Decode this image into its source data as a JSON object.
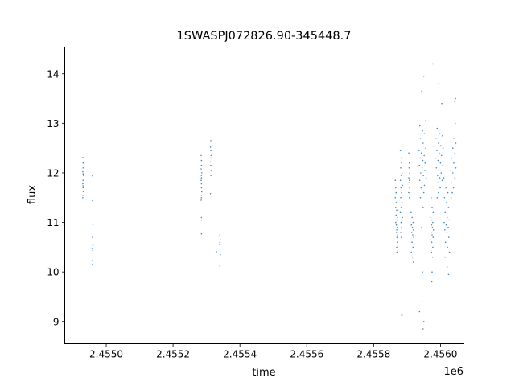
{
  "chart_data": {
    "type": "scatter",
    "title": "1SWASPJ072826.90-345448.7",
    "xlabel": "time",
    "ylabel": "flux",
    "x_offset_label": "1e6",
    "xlim": [
      2454876,
      2456070
    ],
    "ylim": [
      8.55,
      14.54
    ],
    "x_ticks": [
      2455000,
      2455200,
      2455400,
      2455600,
      2455800,
      2456000
    ],
    "x_tick_labels": [
      "2.4550",
      "2.4552",
      "2.4554",
      "2.4556",
      "2.4558",
      "2.4560"
    ],
    "y_ticks": [
      9,
      10,
      11,
      12,
      13,
      14
    ],
    "y_tick_labels": [
      "9",
      "10",
      "11",
      "12",
      "13",
      "14"
    ],
    "grid": false,
    "marker_color": "#1f77b4",
    "points": [
      [
        2454930,
        12.31
      ],
      [
        2454931,
        12.2
      ],
      [
        2454931,
        12.1
      ],
      [
        2454930,
        12.02
      ],
      [
        2454931,
        11.98
      ],
      [
        2454932,
        11.95
      ],
      [
        2454931,
        11.85
      ],
      [
        2454930,
        11.78
      ],
      [
        2454931,
        11.74
      ],
      [
        2454931,
        11.7
      ],
      [
        2454932,
        11.62
      ],
      [
        2454931,
        11.55
      ],
      [
        2454930,
        11.5
      ],
      [
        2454959,
        11.94
      ],
      [
        2454959,
        11.44
      ],
      [
        2454960,
        10.96
      ],
      [
        2454959,
        10.7
      ],
      [
        2454960,
        10.54
      ],
      [
        2454959,
        10.47
      ],
      [
        2454960,
        10.43
      ],
      [
        2454959,
        10.23
      ],
      [
        2454959,
        10.15
      ],
      [
        2455284,
        12.35
      ],
      [
        2455285,
        12.25
      ],
      [
        2455285,
        12.15
      ],
      [
        2455284,
        12.08
      ],
      [
        2455286,
        12.0
      ],
      [
        2455285,
        11.95
      ],
      [
        2455285,
        11.9
      ],
      [
        2455284,
        11.85
      ],
      [
        2455285,
        11.78
      ],
      [
        2455285,
        11.7
      ],
      [
        2455286,
        11.62
      ],
      [
        2455285,
        11.55
      ],
      [
        2455285,
        11.5
      ],
      [
        2455284,
        11.45
      ],
      [
        2455285,
        11.1
      ],
      [
        2455285,
        11.05
      ],
      [
        2455285,
        10.77
      ],
      [
        2455313,
        12.65
      ],
      [
        2455312,
        12.52
      ],
      [
        2455313,
        12.45
      ],
      [
        2455314,
        12.35
      ],
      [
        2455313,
        12.3
      ],
      [
        2455312,
        12.22
      ],
      [
        2455313,
        12.15
      ],
      [
        2455314,
        12.05
      ],
      [
        2455313,
        11.95
      ],
      [
        2455312,
        11.58
      ],
      [
        2455330,
        10.41
      ],
      [
        2455340,
        10.75
      ],
      [
        2455341,
        10.65
      ],
      [
        2455340,
        10.6
      ],
      [
        2455340,
        10.55
      ],
      [
        2455341,
        10.35
      ],
      [
        2455340,
        10.12
      ],
      [
        2455865,
        11.85
      ],
      [
        2455866,
        11.7
      ],
      [
        2455867,
        11.6
      ],
      [
        2455865,
        11.5
      ],
      [
        2455868,
        11.4
      ],
      [
        2455866,
        11.3
      ],
      [
        2455869,
        11.25
      ],
      [
        2455867,
        11.15
      ],
      [
        2455870,
        11.05
      ],
      [
        2455868,
        10.95
      ],
      [
        2455871,
        10.9
      ],
      [
        2455869,
        10.85
      ],
      [
        2455872,
        10.75
      ],
      [
        2455870,
        10.7
      ],
      [
        2455871,
        10.6
      ],
      [
        2455869,
        10.5
      ],
      [
        2455870,
        10.4
      ],
      [
        2455866,
        11.0
      ],
      [
        2455872,
        11.1
      ],
      [
        2455868,
        10.8
      ],
      [
        2455880,
        12.45
      ],
      [
        2455882,
        12.3
      ],
      [
        2455884,
        12.2
      ],
      [
        2455881,
        12.1
      ],
      [
        2455885,
        12.0
      ],
      [
        2455883,
        11.95
      ],
      [
        2455880,
        11.85
      ],
      [
        2455886,
        11.75
      ],
      [
        2455882,
        11.7
      ],
      [
        2455884,
        11.6
      ],
      [
        2455881,
        11.5
      ],
      [
        2455885,
        11.4
      ],
      [
        2455883,
        11.3
      ],
      [
        2455880,
        11.2
      ],
      [
        2455886,
        11.1
      ],
      [
        2455882,
        11.0
      ],
      [
        2455884,
        10.9
      ],
      [
        2455881,
        10.8
      ],
      [
        2455883,
        10.7
      ],
      [
        2455884,
        9.14
      ],
      [
        2455885,
        9.12
      ],
      [
        2455905,
        12.4
      ],
      [
        2455907,
        12.2
      ],
      [
        2455906,
        12.1
      ],
      [
        2455908,
        12.0
      ],
      [
        2455905,
        11.9
      ],
      [
        2455907,
        11.85
      ],
      [
        2455906,
        11.8
      ],
      [
        2455908,
        11.7
      ],
      [
        2455905,
        11.6
      ],
      [
        2455907,
        11.5
      ],
      [
        2455912,
        11.2
      ],
      [
        2455915,
        11.1
      ],
      [
        2455918,
        11.0
      ],
      [
        2455913,
        10.95
      ],
      [
        2455916,
        10.9
      ],
      [
        2455919,
        10.85
      ],
      [
        2455914,
        10.8
      ],
      [
        2455917,
        10.75
      ],
      [
        2455920,
        10.7
      ],
      [
        2455915,
        10.6
      ],
      [
        2455918,
        10.5
      ],
      [
        2455913,
        10.4
      ],
      [
        2455916,
        10.3
      ],
      [
        2455919,
        10.2
      ],
      [
        2455944,
        14.28
      ],
      [
        2455950,
        13.95
      ],
      [
        2455944,
        13.65
      ],
      [
        2455955,
        13.05
      ],
      [
        2455938,
        12.95
      ],
      [
        2455946,
        12.85
      ],
      [
        2455952,
        12.8
      ],
      [
        2455940,
        12.7
      ],
      [
        2455948,
        12.6
      ],
      [
        2455956,
        12.5
      ],
      [
        2455936,
        12.45
      ],
      [
        2455943,
        12.4
      ],
      [
        2455951,
        12.35
      ],
      [
        2455939,
        12.3
      ],
      [
        2455947,
        12.25
      ],
      [
        2455954,
        12.2
      ],
      [
        2455937,
        12.15
      ],
      [
        2455945,
        12.1
      ],
      [
        2455953,
        12.05
      ],
      [
        2455941,
        12.0
      ],
      [
        2455949,
        11.95
      ],
      [
        2455957,
        11.9
      ],
      [
        2455938,
        11.85
      ],
      [
        2455946,
        11.8
      ],
      [
        2455952,
        11.75
      ],
      [
        2455942,
        11.7
      ],
      [
        2455950,
        11.6
      ],
      [
        2455940,
        11.5
      ],
      [
        2455948,
        11.3
      ],
      [
        2455944,
        10.9
      ],
      [
        2455946,
        10.0
      ],
      [
        2455937,
        9.2
      ],
      [
        2455948,
        8.85
      ],
      [
        2455950,
        9.0
      ],
      [
        2455945,
        9.4
      ],
      [
        2455977,
        14.2
      ],
      [
        2455972,
        11.5
      ],
      [
        2455975,
        11.3
      ],
      [
        2455978,
        11.2
      ],
      [
        2455971,
        11.1
      ],
      [
        2455974,
        11.05
      ],
      [
        2455977,
        11.0
      ],
      [
        2455973,
        10.95
      ],
      [
        2455976,
        10.9
      ],
      [
        2455979,
        10.85
      ],
      [
        2455972,
        10.8
      ],
      [
        2455975,
        10.75
      ],
      [
        2455978,
        10.7
      ],
      [
        2455971,
        10.65
      ],
      [
        2455974,
        10.6
      ],
      [
        2455977,
        10.5
      ],
      [
        2455973,
        10.4
      ],
      [
        2455976,
        10.3
      ],
      [
        2455975,
        10.0
      ],
      [
        2455974,
        9.8
      ],
      [
        2455995,
        13.8
      ],
      [
        2456004,
        13.4
      ],
      [
        2455990,
        12.9
      ],
      [
        2455998,
        12.8
      ],
      [
        2456006,
        12.75
      ],
      [
        2455987,
        12.7
      ],
      [
        2455994,
        12.6
      ],
      [
        2456001,
        12.55
      ],
      [
        2456008,
        12.5
      ],
      [
        2455989,
        12.45
      ],
      [
        2455996,
        12.4
      ],
      [
        2456003,
        12.35
      ],
      [
        2455986,
        12.3
      ],
      [
        2455993,
        12.25
      ],
      [
        2456000,
        12.2
      ],
      [
        2456007,
        12.15
      ],
      [
        2455988,
        12.1
      ],
      [
        2455995,
        12.05
      ],
      [
        2456002,
        12.0
      ],
      [
        2455991,
        11.95
      ],
      [
        2455998,
        11.9
      ],
      [
        2456005,
        11.85
      ],
      [
        2455992,
        11.8
      ],
      [
        2455999,
        11.7
      ],
      [
        2455994,
        11.6
      ],
      [
        2455990,
        11.5
      ],
      [
        2456010,
        11.9
      ],
      [
        2456016,
        11.7
      ],
      [
        2456022,
        11.6
      ],
      [
        2456012,
        11.5
      ],
      [
        2456018,
        11.4
      ],
      [
        2456024,
        11.3
      ],
      [
        2456014,
        11.2
      ],
      [
        2456020,
        11.1
      ],
      [
        2456026,
        11.05
      ],
      [
        2456011,
        11.0
      ],
      [
        2456017,
        10.95
      ],
      [
        2456023,
        10.9
      ],
      [
        2456013,
        10.85
      ],
      [
        2456019,
        10.8
      ],
      [
        2456025,
        10.7
      ],
      [
        2456015,
        10.6
      ],
      [
        2456021,
        10.5
      ],
      [
        2456027,
        10.4
      ],
      [
        2456014,
        10.3
      ],
      [
        2456020,
        10.1
      ],
      [
        2456024,
        9.95
      ],
      [
        2456045,
        13.5
      ],
      [
        2456042,
        13.45
      ],
      [
        2456044,
        13.0
      ],
      [
        2456040,
        12.7
      ],
      [
        2456046,
        12.6
      ],
      [
        2456037,
        12.5
      ],
      [
        2456043,
        12.4
      ],
      [
        2456034,
        12.3
      ],
      [
        2456040,
        12.2
      ],
      [
        2456046,
        12.1
      ],
      [
        2456031,
        12.05
      ],
      [
        2456037,
        12.0
      ],
      [
        2456043,
        11.9
      ],
      [
        2456033,
        11.8
      ],
      [
        2456039,
        11.7
      ],
      [
        2456035,
        11.6
      ],
      [
        2456032,
        11.5
      ]
    ]
  }
}
